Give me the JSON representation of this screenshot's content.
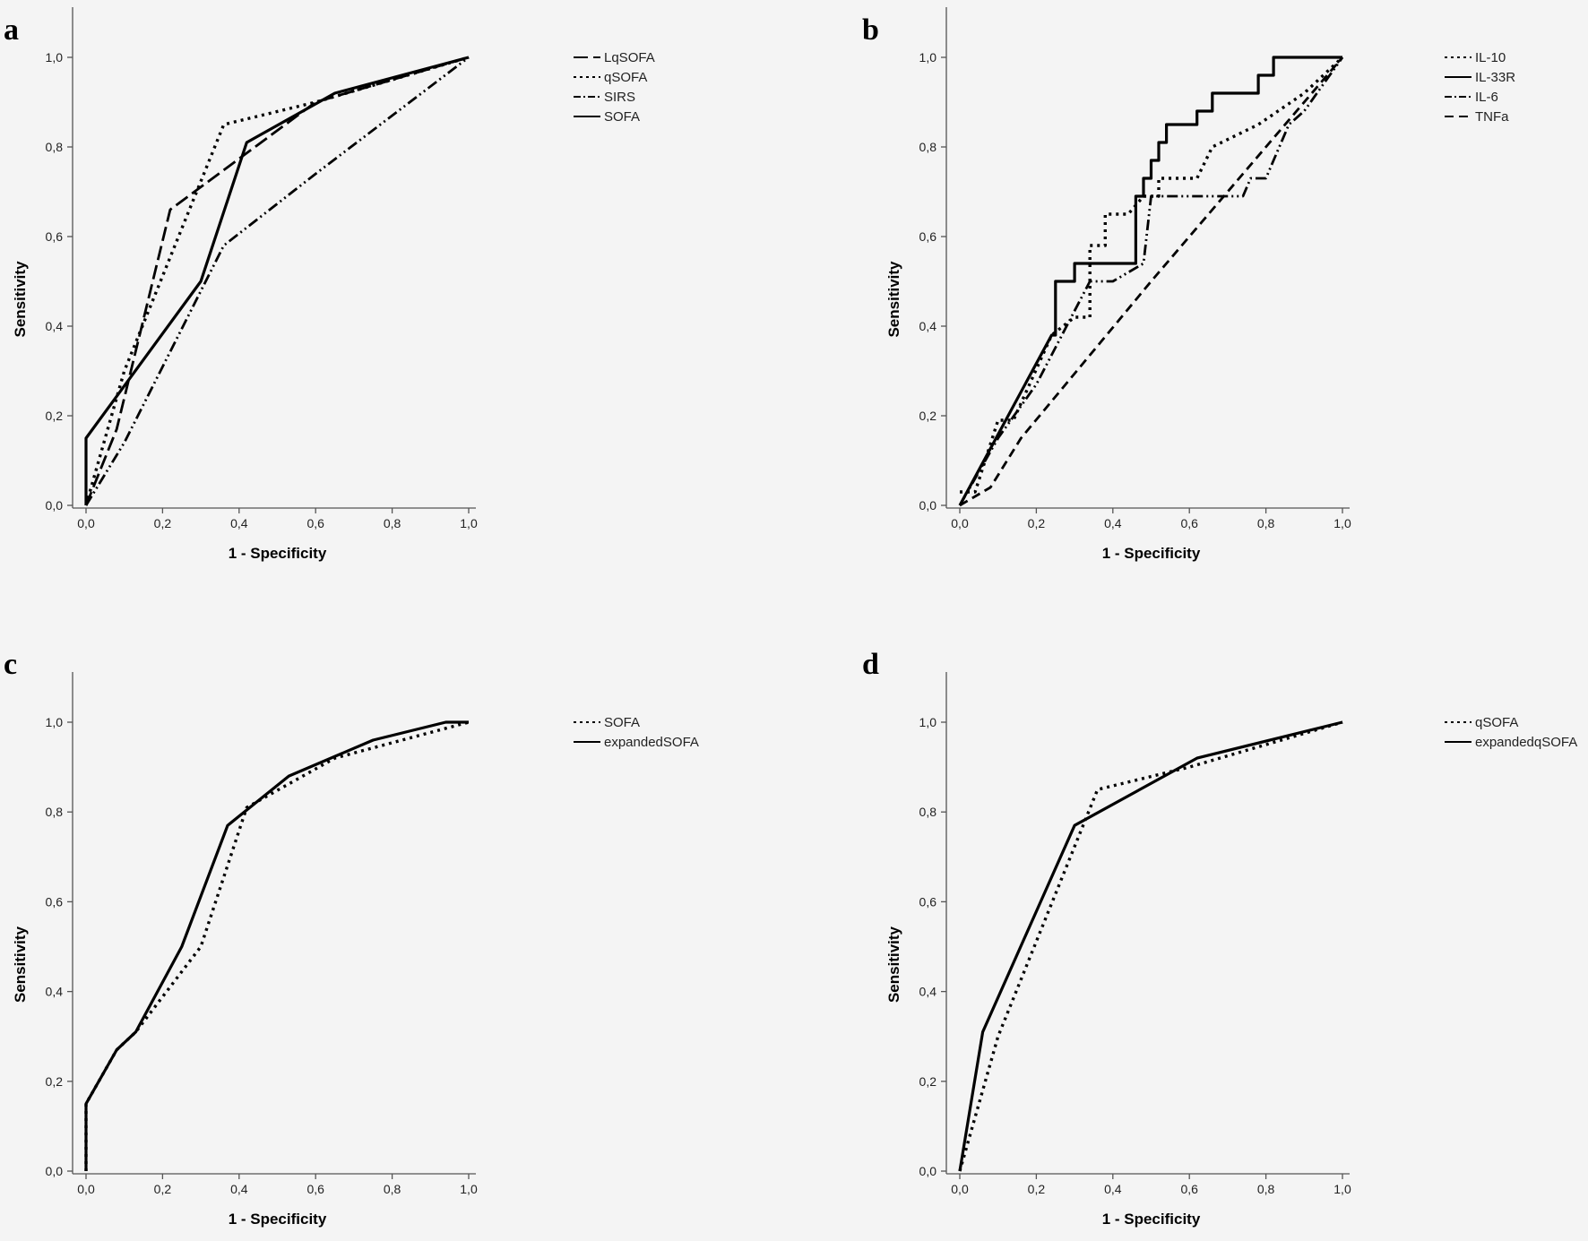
{
  "chart_data": [
    {
      "panel": "a",
      "type": "line",
      "title": "",
      "xlabel": "1 - Specificity",
      "ylabel": "Sensitivity",
      "xlim": [
        0,
        1
      ],
      "ylim": [
        0,
        1.1
      ],
      "xticks": [
        "0,0",
        "0,2",
        "0,4",
        "0,6",
        "0,8",
        "1,0"
      ],
      "yticks": [
        "0,0",
        "0,2",
        "0,4",
        "0,6",
        "0,8",
        "1,0"
      ],
      "legend_position": "top-right",
      "series": [
        {
          "name": "LqSOFA",
          "style": "longdash",
          "x": [
            0,
            0.08,
            0.22,
            0.6,
            1
          ],
          "y": [
            0,
            0.17,
            0.66,
            0.9,
            1
          ]
        },
        {
          "name": "qSOFA",
          "style": "dot",
          "x": [
            0,
            0.1,
            0.36,
            0.6,
            1
          ],
          "y": [
            0,
            0.3,
            0.85,
            0.9,
            1
          ]
        },
        {
          "name": "SIRS",
          "style": "dashdotdot",
          "x": [
            0,
            0.1,
            0.36,
            0.6,
            1
          ],
          "y": [
            0,
            0.14,
            0.58,
            0.74,
            1
          ]
        },
        {
          "name": "SOFA",
          "style": "solid",
          "x": [
            0,
            0,
            0.3,
            0.42,
            0.65,
            1
          ],
          "y": [
            0,
            0.15,
            0.5,
            0.81,
            0.92,
            1
          ]
        }
      ]
    },
    {
      "panel": "b",
      "type": "line",
      "title": "",
      "xlabel": "1 - Specificity",
      "ylabel": "Sensitivity",
      "xlim": [
        0,
        1
      ],
      "ylim": [
        0,
        1.1
      ],
      "xticks": [
        "0,0",
        "0,2",
        "0,4",
        "0,6",
        "0,8",
        "1,0"
      ],
      "yticks": [
        "0,0",
        "0,2",
        "0,4",
        "0,6",
        "0,8",
        "1,0"
      ],
      "legend_position": "top-right",
      "series": [
        {
          "name": "IL-10",
          "style": "dot",
          "x": [
            0,
            0.04,
            0.1,
            0.14,
            0.24,
            0.3,
            0.34,
            0.34,
            0.38,
            0.38,
            0.44,
            0.48,
            0.52,
            0.52,
            0.62,
            0.66,
            0.78,
            0.9,
            1
          ],
          "y": [
            0.03,
            0.03,
            0.19,
            0.19,
            0.38,
            0.42,
            0.42,
            0.58,
            0.58,
            0.65,
            0.65,
            0.69,
            0.69,
            0.73,
            0.73,
            0.8,
            0.85,
            0.92,
            1
          ]
        },
        {
          "name": "IL-33R",
          "style": "solid",
          "x": [
            0,
            0.24,
            0.25,
            0.25,
            0.3,
            0.3,
            0.46,
            0.46,
            0.48,
            0.48,
            0.5,
            0.5,
            0.52,
            0.52,
            0.54,
            0.54,
            0.62,
            0.62,
            0.66,
            0.66,
            0.78,
            0.78,
            0.82,
            0.82,
            1
          ],
          "y": [
            0,
            0.38,
            0.38,
            0.5,
            0.5,
            0.54,
            0.54,
            0.69,
            0.69,
            0.73,
            0.73,
            0.77,
            0.77,
            0.81,
            0.81,
            0.85,
            0.85,
            0.88,
            0.88,
            0.92,
            0.92,
            0.96,
            0.96,
            1,
            1
          ]
        },
        {
          "name": "IL-6",
          "style": "dashdotdot",
          "x": [
            0,
            0.1,
            0.2,
            0.34,
            0.36,
            0.4,
            0.48,
            0.5,
            0.66,
            0.74,
            0.76,
            0.8,
            0.82,
            0.84,
            0.86,
            0.9,
            1
          ],
          "y": [
            0,
            0.15,
            0.27,
            0.5,
            0.5,
            0.5,
            0.54,
            0.69,
            0.69,
            0.69,
            0.73,
            0.73,
            0.77,
            0.81,
            0.85,
            0.88,
            1
          ]
        },
        {
          "name": "TNFa",
          "style": "dash",
          "x": [
            0,
            0.08,
            0.16,
            0.5,
            0.8,
            1
          ],
          "y": [
            0,
            0.04,
            0.15,
            0.5,
            0.8,
            1
          ]
        }
      ]
    },
    {
      "panel": "c",
      "type": "line",
      "title": "",
      "xlabel": "1 - Specificity",
      "ylabel": "Sensitivity",
      "xlim": [
        0,
        1
      ],
      "ylim": [
        0,
        1.1
      ],
      "xticks": [
        "0,0",
        "0,2",
        "0,4",
        "0,6",
        "0,8",
        "1,0"
      ],
      "yticks": [
        "0,0",
        "0,2",
        "0,4",
        "0,6",
        "0,8",
        "1,0"
      ],
      "legend_position": "top-right",
      "series": [
        {
          "name": "SOFA",
          "style": "dot",
          "x": [
            0,
            0,
            0.08,
            0.13,
            0.3,
            0.42,
            0.65,
            1
          ],
          "y": [
            0,
            0.15,
            0.27,
            0.31,
            0.5,
            0.81,
            0.92,
            1
          ]
        },
        {
          "name": "expandedSOFA",
          "style": "solid",
          "x": [
            0,
            0,
            0.08,
            0.13,
            0.25,
            0.37,
            0.53,
            0.75,
            0.94,
            1
          ],
          "y": [
            0,
            0.15,
            0.27,
            0.31,
            0.5,
            0.77,
            0.88,
            0.96,
            1,
            1
          ]
        }
      ]
    },
    {
      "panel": "d",
      "type": "line",
      "title": "",
      "xlabel": "1 - Specificity",
      "ylabel": "Sensitivity",
      "xlim": [
        0,
        1
      ],
      "ylim": [
        0,
        1.1
      ],
      "xticks": [
        "0,0",
        "0,2",
        "0,4",
        "0,6",
        "0,8",
        "1,0"
      ],
      "yticks": [
        "0,0",
        "0,2",
        "0,4",
        "0,6",
        "0,8",
        "1,0"
      ],
      "legend_position": "top-right",
      "series": [
        {
          "name": "qSOFA",
          "style": "dot",
          "x": [
            0,
            0.1,
            0.36,
            0.6,
            1
          ],
          "y": [
            0,
            0.3,
            0.85,
            0.9,
            1
          ]
        },
        {
          "name": "expandedqSOFA",
          "style": "solid",
          "x": [
            0,
            0.06,
            0.3,
            0.62,
            1
          ],
          "y": [
            0,
            0.31,
            0.77,
            0.92,
            1
          ]
        }
      ]
    }
  ]
}
